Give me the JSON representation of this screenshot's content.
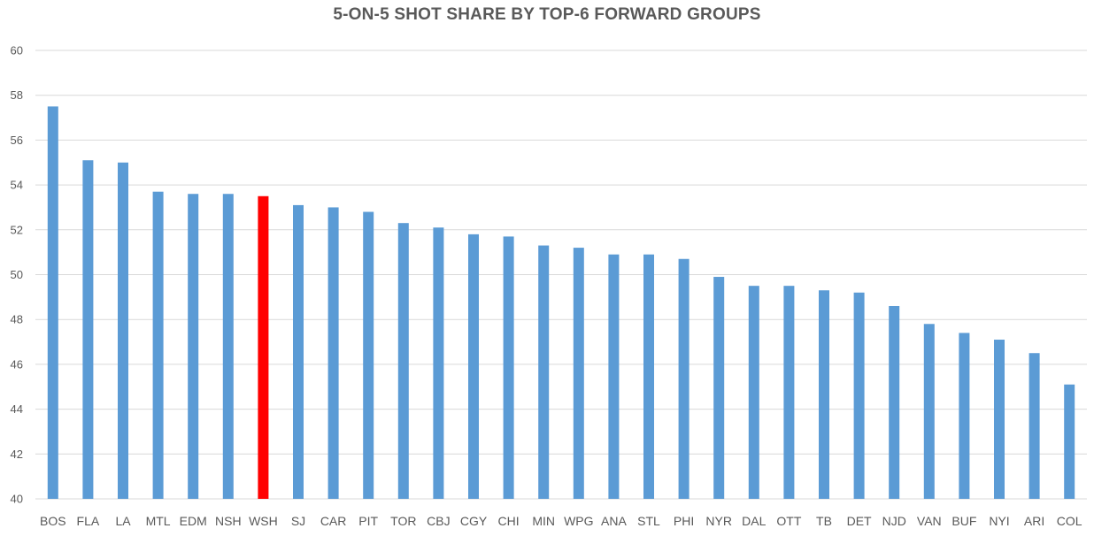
{
  "chart_data": {
    "type": "bar",
    "title": "5-ON-5 SHOT SHARE BY TOP-6 FORWARD GROUPS",
    "xlabel": "",
    "ylabel": "",
    "ylim": [
      40,
      60
    ],
    "yticks": [
      "40",
      "42",
      "44",
      "46",
      "48",
      "50",
      "52",
      "54",
      "56",
      "58",
      "60"
    ],
    "grid": true,
    "legend": "none",
    "bar_color": "#5b9bd5",
    "highlight_color": "#ff0000",
    "highlight_category": "WSH",
    "categories": [
      "BOS",
      "FLA",
      "LA",
      "MTL",
      "EDM",
      "NSH",
      "WSH",
      "SJ",
      "CAR",
      "PIT",
      "TOR",
      "CBJ",
      "CGY",
      "CHI",
      "MIN",
      "WPG",
      "ANA",
      "STL",
      "PHI",
      "NYR",
      "DAL",
      "OTT",
      "TB",
      "DET",
      "NJD",
      "VAN",
      "BUF",
      "NYI",
      "ARI",
      "COL"
    ],
    "values": [
      57.5,
      55.1,
      55.0,
      53.7,
      53.6,
      53.6,
      53.5,
      53.1,
      53.0,
      52.8,
      52.3,
      52.1,
      51.8,
      51.7,
      51.3,
      51.2,
      50.9,
      50.9,
      50.7,
      49.9,
      49.5,
      49.5,
      49.3,
      49.2,
      48.6,
      47.8,
      47.4,
      47.1,
      46.5,
      45.1
    ]
  }
}
